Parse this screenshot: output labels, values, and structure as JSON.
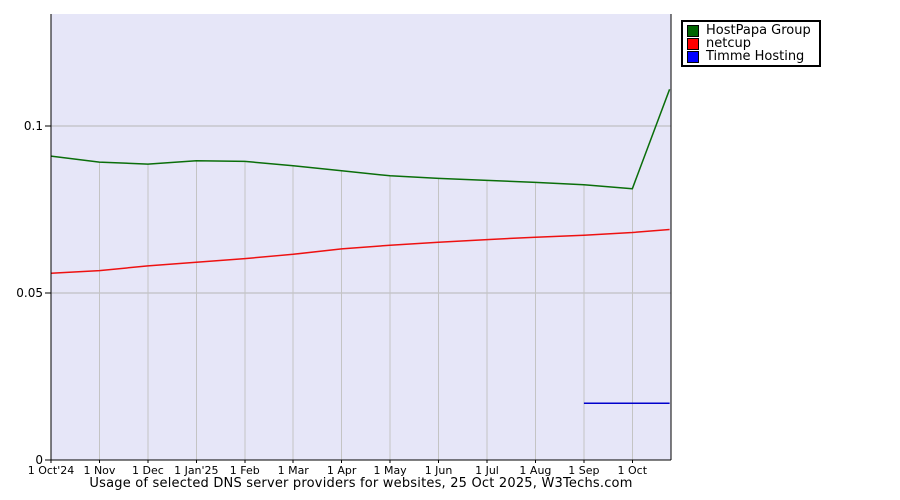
{
  "title": "Usage of selected DNS server providers for websites, 25 Oct 2025, W3Techs.com",
  "legend": [
    {
      "label": "HostPapa Group",
      "color": "#006400"
    },
    {
      "label": "netcup",
      "color": "#ff0000"
    },
    {
      "label": "Timme Hosting",
      "color": "#0000ff"
    }
  ],
  "chart_data": {
    "type": "line",
    "title": "Usage of selected DNS server providers for websites, 25 Oct 2025, W3Techs.com",
    "x_labels": [
      "1 Oct'24",
      "1 Nov",
      "1 Dec",
      "1 Jan'25",
      "1 Feb",
      "1 Mar",
      "1 Apr",
      "1 May",
      "1 Jun",
      "1 Jul",
      "1 Aug",
      "1 Sep",
      "1 Oct"
    ],
    "end_date": "25 Oct 2025",
    "end_x_index": 12.77,
    "y_ticks": [
      0,
      0.05,
      0.1
    ],
    "y_tick_labels": [
      "0",
      "0.05",
      "0.1"
    ],
    "ylim": [
      0,
      0.1335
    ],
    "grid": true,
    "legend_position": "top-right-outside",
    "series": [
      {
        "name": "HostPapa Group",
        "color": "#0a6e0a",
        "values": [
          0.091,
          0.0892,
          0.0886,
          0.0896,
          0.0894,
          0.0881,
          0.0866,
          0.0851,
          0.0843,
          0.0837,
          0.0831,
          0.0824,
          0.0812,
          0.111
        ]
      },
      {
        "name": "netcup",
        "color": "#ee1111",
        "values": [
          0.0559,
          0.0567,
          0.0581,
          0.0592,
          0.0603,
          0.0616,
          0.0632,
          0.0643,
          0.0652,
          0.066,
          0.0667,
          0.0673,
          0.0681,
          0.069
        ]
      },
      {
        "name": "Timme Hosting",
        "color": "#0000cc",
        "values": [
          null,
          null,
          null,
          null,
          null,
          null,
          null,
          null,
          null,
          null,
          null,
          0.017,
          0.017,
          0.017
        ]
      }
    ],
    "colors": {
      "plot_bg": "#e6e6f8",
      "grid_v": "#c4c4c4",
      "grid_h": "#b6b6b6",
      "axis": "#000000"
    }
  }
}
